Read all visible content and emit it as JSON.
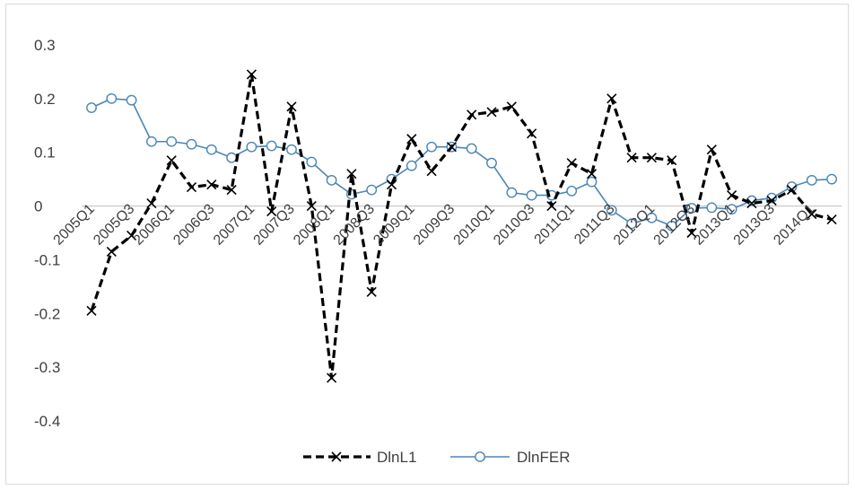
{
  "chart_data": {
    "type": "line",
    "title": "",
    "xlabel": "",
    "ylabel": "",
    "ylim": [
      -0.4,
      0.3
    ],
    "yticks": [
      0.3,
      0.2,
      0.1,
      0,
      -0.1,
      -0.2,
      -0.3,
      -0.4
    ],
    "ytick_labels": [
      "0.3",
      "0.2",
      "0.1",
      "0",
      "-0.1",
      "-0.2",
      "-0.3",
      "-0.4"
    ],
    "grid": false,
    "legend": "bottom",
    "x": [
      "2005Q1",
      "2005Q2",
      "2005Q3",
      "2005Q4",
      "2006Q1",
      "2006Q2",
      "2006Q3",
      "2006Q4",
      "2007Q1",
      "2007Q2",
      "2007Q3",
      "2007Q4",
      "2008Q1",
      "2008Q2",
      "2008Q3",
      "2008Q4",
      "2009Q1",
      "2009Q2",
      "2009Q3",
      "2009Q4",
      "2010Q1",
      "2010Q2",
      "2010Q3",
      "2010Q4",
      "2011Q1",
      "2011Q2",
      "2011Q3",
      "2011Q4",
      "2012Q1",
      "2012Q2",
      "2012Q3",
      "2012Q4",
      "2013Q1",
      "2013Q2",
      "2013Q3",
      "2013Q4",
      "2014Q1",
      "2014Q2"
    ],
    "xtick_labels": [
      "2005Q1",
      "2005Q3",
      "2006Q1",
      "2006Q3",
      "2007Q1",
      "2007Q3",
      "2008Q1",
      "2008Q3",
      "2009Q1",
      "2009Q3",
      "2010Q1",
      "2010Q3",
      "2011Q1",
      "2011Q3",
      "2012Q1",
      "2012Q3",
      "2013Q1",
      "2013Q3",
      "2014Q1"
    ],
    "series": [
      {
        "name": "DlnL1",
        "color": "#000000",
        "style": "dashed",
        "marker": "x",
        "values": [
          -0.195,
          -0.085,
          -0.055,
          0.005,
          0.085,
          0.035,
          0.04,
          0.03,
          0.245,
          -0.01,
          0.185,
          0.0,
          -0.32,
          0.06,
          -0.16,
          0.04,
          0.125,
          0.065,
          0.11,
          0.17,
          0.175,
          0.185,
          0.135,
          0.0,
          0.08,
          0.06,
          0.2,
          0.09,
          0.09,
          0.085,
          -0.05,
          0.105,
          0.02,
          0.005,
          0.01,
          0.03,
          -0.015,
          -0.025
        ]
      },
      {
        "name": "DlnFER",
        "color": "#4a86b8",
        "style": "solid",
        "marker": "o",
        "values": [
          0.183,
          0.2,
          0.197,
          0.12,
          0.12,
          0.115,
          0.105,
          0.09,
          0.11,
          0.112,
          0.105,
          0.082,
          0.048,
          0.022,
          0.03,
          0.05,
          0.075,
          0.11,
          0.11,
          0.107,
          0.08,
          0.025,
          0.02,
          0.02,
          0.028,
          0.045,
          -0.008,
          -0.033,
          -0.022,
          -0.037,
          -0.004,
          -0.003,
          -0.006,
          0.01,
          0.015,
          0.036,
          0.048,
          0.05
        ]
      }
    ]
  }
}
